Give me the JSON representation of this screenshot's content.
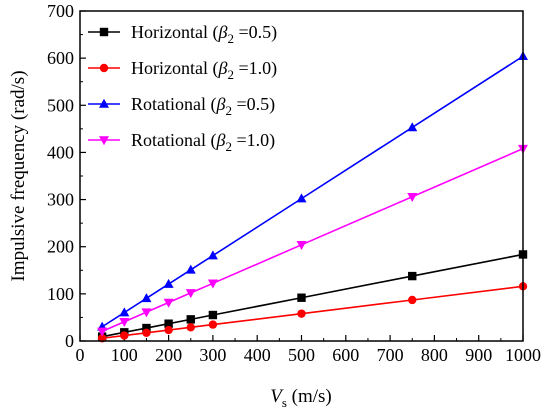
{
  "chart_data": {
    "type": "line",
    "title": "",
    "xlabel_var": "V",
    "xlabel_sub": "s",
    "xlabel_unit": " (m/s)",
    "ylabel": "Impulsive frequency (rad/s)",
    "xlim": [
      0,
      1000
    ],
    "ylim": [
      0,
      700
    ],
    "xticks": [
      0,
      100,
      200,
      300,
      400,
      500,
      600,
      700,
      800,
      900,
      1000
    ],
    "yticks": [
      0,
      100,
      200,
      300,
      400,
      500,
      600,
      700
    ],
    "grid": false,
    "legend_position": "top-left",
    "series": [
      {
        "name_prefix": "Horizontal (",
        "name_beta": "β",
        "name_sub": "2",
        "name_suffix": " =0.5)",
        "color": "#000000",
        "marker": "square",
        "x": [
          50,
          100,
          150,
          200,
          250,
          300,
          500,
          750,
          1000
        ],
        "y": [
          9.2,
          18.4,
          27.5,
          36.7,
          45.9,
          55.1,
          91.8,
          137.7,
          183.6
        ]
      },
      {
        "name_prefix": "Horizontal (",
        "name_beta": "β",
        "name_sub": "2",
        "name_suffix": " =1.0)",
        "color": "#ff0000",
        "marker": "circle",
        "x": [
          50,
          100,
          150,
          200,
          250,
          300,
          500,
          750,
          1000
        ],
        "y": [
          5.8,
          11.6,
          17.4,
          23.2,
          29.0,
          34.8,
          58.0,
          87.0,
          116.0
        ]
      },
      {
        "name_prefix": "Rotational (",
        "name_beta": "β",
        "name_sub": "2",
        "name_suffix": " =0.5)",
        "color": "#0000ff",
        "marker": "triangle-up",
        "x": [
          50,
          100,
          150,
          200,
          250,
          300,
          500,
          750,
          1000
        ],
        "y": [
          30.2,
          60.4,
          90.6,
          120.8,
          151.0,
          181.2,
          302.0,
          453.0,
          604.0
        ]
      },
      {
        "name_prefix": "Rotational (",
        "name_beta": "β",
        "name_sub": "2",
        "name_suffix": " =1.0)",
        "color": "#ff00ff",
        "marker": "triangle-down",
        "x": [
          50,
          100,
          150,
          200,
          250,
          300,
          500,
          750,
          1000
        ],
        "y": [
          20.4,
          40.8,
          61.2,
          81.6,
          102.0,
          122.4,
          204.0,
          306.0,
          408.0
        ]
      }
    ]
  }
}
